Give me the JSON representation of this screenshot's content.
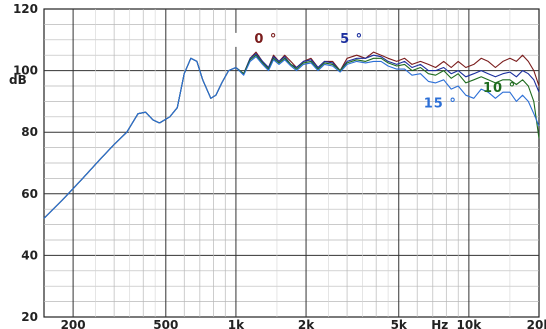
{
  "chart_data": {
    "type": "line",
    "xscale": "log",
    "xlim": [
      150,
      20000
    ],
    "ylim": [
      20,
      120
    ],
    "ylabel": "dB",
    "xlabel": "Hz",
    "grid": true,
    "yticks": [
      20,
      40,
      60,
      80,
      100,
      120
    ],
    "xticks": [
      {
        "value": 200,
        "label": "200"
      },
      {
        "value": 500,
        "label": "500"
      },
      {
        "value": 1000,
        "label": "1k"
      },
      {
        "value": 2000,
        "label": "2k"
      },
      {
        "value": 5000,
        "label": "5k"
      },
      {
        "value": 7500,
        "label": "Hz"
      },
      {
        "value": 10000,
        "label": "10k"
      },
      {
        "value": 20000,
        "label": "20k"
      }
    ],
    "series": [
      {
        "name": "0°",
        "color": "#7a1c1c",
        "points": [
          [
            150,
            52
          ],
          [
            180,
            58
          ],
          [
            220,
            65
          ],
          [
            260,
            71
          ],
          [
            300,
            76
          ],
          [
            340,
            80
          ],
          [
            380,
            86
          ],
          [
            410,
            86.5
          ],
          [
            440,
            84
          ],
          [
            470,
            83
          ],
          [
            520,
            85
          ],
          [
            560,
            88
          ],
          [
            600,
            99
          ],
          [
            640,
            104
          ],
          [
            680,
            103
          ],
          [
            720,
            97
          ],
          [
            780,
            91
          ],
          [
            820,
            92
          ],
          [
            870,
            96
          ],
          [
            930,
            100
          ],
          [
            1000,
            101
          ],
          [
            1080,
            99
          ],
          [
            1150,
            104
          ],
          [
            1220,
            106
          ],
          [
            1300,
            103
          ],
          [
            1380,
            101
          ],
          [
            1450,
            105
          ],
          [
            1530,
            103
          ],
          [
            1620,
            105
          ],
          [
            1720,
            103
          ],
          [
            1820,
            101
          ],
          [
            1950,
            103
          ],
          [
            2100,
            104
          ],
          [
            2250,
            101
          ],
          [
            2400,
            103
          ],
          [
            2600,
            103
          ],
          [
            2800,
            100
          ],
          [
            3000,
            104
          ],
          [
            3300,
            105
          ],
          [
            3600,
            104
          ],
          [
            3900,
            106
          ],
          [
            4200,
            105
          ],
          [
            4500,
            104
          ],
          [
            4900,
            103
          ],
          [
            5300,
            104
          ],
          [
            5700,
            102
          ],
          [
            6200,
            103
          ],
          [
            6700,
            102
          ],
          [
            7200,
            101
          ],
          [
            7800,
            103
          ],
          [
            8400,
            101
          ],
          [
            9000,
            103
          ],
          [
            9700,
            101
          ],
          [
            10500,
            102
          ],
          [
            11300,
            104
          ],
          [
            12100,
            103
          ],
          [
            13000,
            101
          ],
          [
            14000,
            103
          ],
          [
            15000,
            104
          ],
          [
            16000,
            103
          ],
          [
            17000,
            105
          ],
          [
            18000,
            103
          ],
          [
            19000,
            100
          ],
          [
            20000,
            95
          ]
        ]
      },
      {
        "name": "5°",
        "color": "#1c2f9e",
        "points": [
          [
            150,
            52
          ],
          [
            180,
            58
          ],
          [
            220,
            65
          ],
          [
            260,
            71
          ],
          [
            300,
            76
          ],
          [
            340,
            80
          ],
          [
            380,
            86
          ],
          [
            410,
            86.5
          ],
          [
            440,
            84
          ],
          [
            470,
            83
          ],
          [
            520,
            85
          ],
          [
            560,
            88
          ],
          [
            600,
            99
          ],
          [
            640,
            104
          ],
          [
            680,
            103
          ],
          [
            720,
            97
          ],
          [
            780,
            91
          ],
          [
            820,
            92
          ],
          [
            870,
            96
          ],
          [
            930,
            100
          ],
          [
            1000,
            101
          ],
          [
            1080,
            99
          ],
          [
            1150,
            104
          ],
          [
            1220,
            105.5
          ],
          [
            1300,
            103
          ],
          [
            1380,
            101
          ],
          [
            1450,
            104.5
          ],
          [
            1530,
            103
          ],
          [
            1620,
            104.5
          ],
          [
            1720,
            102
          ],
          [
            1820,
            101
          ],
          [
            1950,
            103
          ],
          [
            2100,
            103.5
          ],
          [
            2250,
            101
          ],
          [
            2400,
            103
          ],
          [
            2600,
            102.5
          ],
          [
            2800,
            100
          ],
          [
            3000,
            103
          ],
          [
            3300,
            104
          ],
          [
            3600,
            104
          ],
          [
            3900,
            105
          ],
          [
            4200,
            104.5
          ],
          [
            4500,
            103
          ],
          [
            4900,
            102
          ],
          [
            5300,
            103
          ],
          [
            5700,
            101
          ],
          [
            6200,
            102
          ],
          [
            6700,
            100
          ],
          [
            7200,
            100
          ],
          [
            7800,
            101
          ],
          [
            8400,
            99
          ],
          [
            9000,
            100
          ],
          [
            9700,
            98
          ],
          [
            10500,
            99
          ],
          [
            11300,
            100
          ],
          [
            12100,
            99
          ],
          [
            13000,
            98
          ],
          [
            14000,
            99
          ],
          [
            15000,
            99.5
          ],
          [
            16000,
            98
          ],
          [
            17000,
            100
          ],
          [
            18000,
            99
          ],
          [
            19000,
            97
          ],
          [
            20000,
            93
          ]
        ]
      },
      {
        "name": "10°",
        "color": "#1e6b1e",
        "points": [
          [
            150,
            52
          ],
          [
            180,
            58
          ],
          [
            220,
            65
          ],
          [
            260,
            71
          ],
          [
            300,
            76
          ],
          [
            340,
            80
          ],
          [
            380,
            86
          ],
          [
            410,
            86.5
          ],
          [
            440,
            84
          ],
          [
            470,
            83
          ],
          [
            520,
            85
          ],
          [
            560,
            88
          ],
          [
            600,
            99
          ],
          [
            640,
            104
          ],
          [
            680,
            103
          ],
          [
            720,
            97
          ],
          [
            780,
            91
          ],
          [
            820,
            92
          ],
          [
            870,
            96
          ],
          [
            930,
            100
          ],
          [
            1000,
            101
          ],
          [
            1080,
            99
          ],
          [
            1150,
            103.5
          ],
          [
            1220,
            105
          ],
          [
            1300,
            102.5
          ],
          [
            1380,
            100.5
          ],
          [
            1450,
            104
          ],
          [
            1530,
            102.5
          ],
          [
            1620,
            104
          ],
          [
            1720,
            102
          ],
          [
            1820,
            100.5
          ],
          [
            1950,
            102.5
          ],
          [
            2100,
            103
          ],
          [
            2250,
            100.5
          ],
          [
            2400,
            102.5
          ],
          [
            2600,
            102
          ],
          [
            2800,
            100
          ],
          [
            3000,
            102.5
          ],
          [
            3300,
            103.5
          ],
          [
            3600,
            103
          ],
          [
            3900,
            104
          ],
          [
            4200,
            104
          ],
          [
            4500,
            102.5
          ],
          [
            4900,
            101.5
          ],
          [
            5300,
            102
          ],
          [
            5700,
            100
          ],
          [
            6200,
            101
          ],
          [
            6700,
            99
          ],
          [
            7200,
            98.5
          ],
          [
            7800,
            100
          ],
          [
            8400,
            97.5
          ],
          [
            9000,
            99
          ],
          [
            9700,
            96
          ],
          [
            10500,
            97
          ],
          [
            11300,
            98
          ],
          [
            12100,
            97
          ],
          [
            13000,
            96
          ],
          [
            14000,
            97
          ],
          [
            15000,
            97
          ],
          [
            16000,
            95.5
          ],
          [
            17000,
            97
          ],
          [
            18000,
            95
          ],
          [
            19000,
            90
          ],
          [
            20000,
            78
          ]
        ]
      },
      {
        "name": "15°",
        "color": "#2c6fd6",
        "points": [
          [
            150,
            52
          ],
          [
            180,
            58
          ],
          [
            220,
            65
          ],
          [
            260,
            71
          ],
          [
            300,
            76
          ],
          [
            340,
            80
          ],
          [
            380,
            86
          ],
          [
            410,
            86.5
          ],
          [
            440,
            84
          ],
          [
            470,
            83
          ],
          [
            520,
            85
          ],
          [
            560,
            88
          ],
          [
            600,
            99
          ],
          [
            640,
            104
          ],
          [
            680,
            103
          ],
          [
            720,
            97
          ],
          [
            780,
            91
          ],
          [
            820,
            92
          ],
          [
            870,
            96
          ],
          [
            930,
            100
          ],
          [
            1000,
            101
          ],
          [
            1080,
            98.5
          ],
          [
            1150,
            103
          ],
          [
            1220,
            104.5
          ],
          [
            1300,
            102
          ],
          [
            1380,
            100
          ],
          [
            1450,
            103.5
          ],
          [
            1530,
            102
          ],
          [
            1620,
            103.5
          ],
          [
            1720,
            101.5
          ],
          [
            1820,
            100
          ],
          [
            1950,
            102
          ],
          [
            2100,
            102.5
          ],
          [
            2250,
            100
          ],
          [
            2400,
            102
          ],
          [
            2600,
            101.5
          ],
          [
            2800,
            99.5
          ],
          [
            3000,
            102
          ],
          [
            3300,
            103
          ],
          [
            3600,
            102.5
          ],
          [
            3900,
            103
          ],
          [
            4200,
            103
          ],
          [
            4500,
            101.5
          ],
          [
            4900,
            100.5
          ],
          [
            5300,
            100.5
          ],
          [
            5700,
            98.5
          ],
          [
            6200,
            99
          ],
          [
            6700,
            96.5
          ],
          [
            7200,
            96
          ],
          [
            7800,
            97
          ],
          [
            8400,
            94
          ],
          [
            9000,
            95
          ],
          [
            9700,
            92
          ],
          [
            10500,
            91
          ],
          [
            11300,
            94
          ],
          [
            12100,
            93
          ],
          [
            13000,
            91
          ],
          [
            14000,
            93
          ],
          [
            15000,
            93
          ],
          [
            16000,
            90
          ],
          [
            17000,
            92
          ],
          [
            18000,
            90
          ],
          [
            19000,
            86
          ],
          [
            20000,
            82
          ]
        ]
      }
    ],
    "annotations": [
      {
        "text": "0 °",
        "series": "0°",
        "x": 1200,
        "y": 109
      },
      {
        "text": "5 °",
        "series": "5°",
        "x": 2800,
        "y": 109
      },
      {
        "text": "10 °",
        "series": "10°",
        "x": 11500,
        "y": 93
      },
      {
        "text": "15 °",
        "series": "15°",
        "x": 6400,
        "y": 88
      }
    ]
  }
}
